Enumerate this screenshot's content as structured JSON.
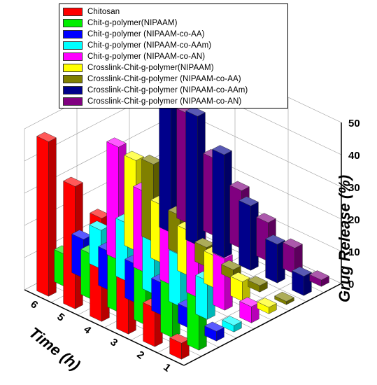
{
  "chart_data": {
    "type": "bar",
    "categories": [
      "1",
      "2",
      "3",
      "4",
      "5",
      "6"
    ],
    "xlabel": "Time (h)",
    "ylabel": "Grug Release (%)",
    "ylim": [
      0,
      50
    ],
    "yticks": [
      "0",
      "10",
      "20",
      "30",
      "40",
      "50"
    ],
    "legend": "top",
    "series": [
      {
        "name": "Chitosan",
        "color": "#ff0000",
        "values": [
          5,
          12,
          28,
          32,
          38,
          48
        ]
      },
      {
        "name": "Chit-g-polymer(NIPAAM)",
        "color": "#00ee00",
        "values": [
          32,
          30,
          24,
          18,
          14,
          10
        ]
      },
      {
        "name": "Chit-g-polymer (NIPAAM-co-AA)",
        "color": "#0000ff",
        "values": [
          3,
          6,
          10,
          12,
          12,
          12
        ]
      },
      {
        "name": "Chit-g-polymer (NIPAAM-co-AAm)",
        "color": "#00ffff",
        "values": [
          2,
          12,
          16,
          20,
          18,
          12
        ]
      },
      {
        "name": "Chit-g-polymer (NIPAAM-co-AN)",
        "color": "#ff00ff",
        "values": [
          5,
          16,
          20,
          22,
          25,
          35
        ]
      },
      {
        "name": "Crosslink-Chit-g-polymer(NIPAAM)",
        "color": "#ffff00",
        "values": [
          2,
          6,
          10,
          14,
          18,
          28
        ]
      },
      {
        "name": "Crosslink-Chit-g-polymer (NIPAAM-co-AA)",
        "color": "#808000",
        "values": [
          1,
          2,
          3,
          6,
          12,
          24
        ]
      },
      {
        "name": "Crosslink-Chit-g-polymer (NIPAAM-co-AAm)",
        "color": "#00008b",
        "values": [
          6,
          12,
          20,
          32,
          40,
          54
        ]
      },
      {
        "name": "Crosslink-Chit-g-polymer (NIPAAM-co-AN)",
        "color": "#800080",
        "values": [
          2,
          8,
          12,
          18,
          24,
          34
        ]
      }
    ]
  }
}
